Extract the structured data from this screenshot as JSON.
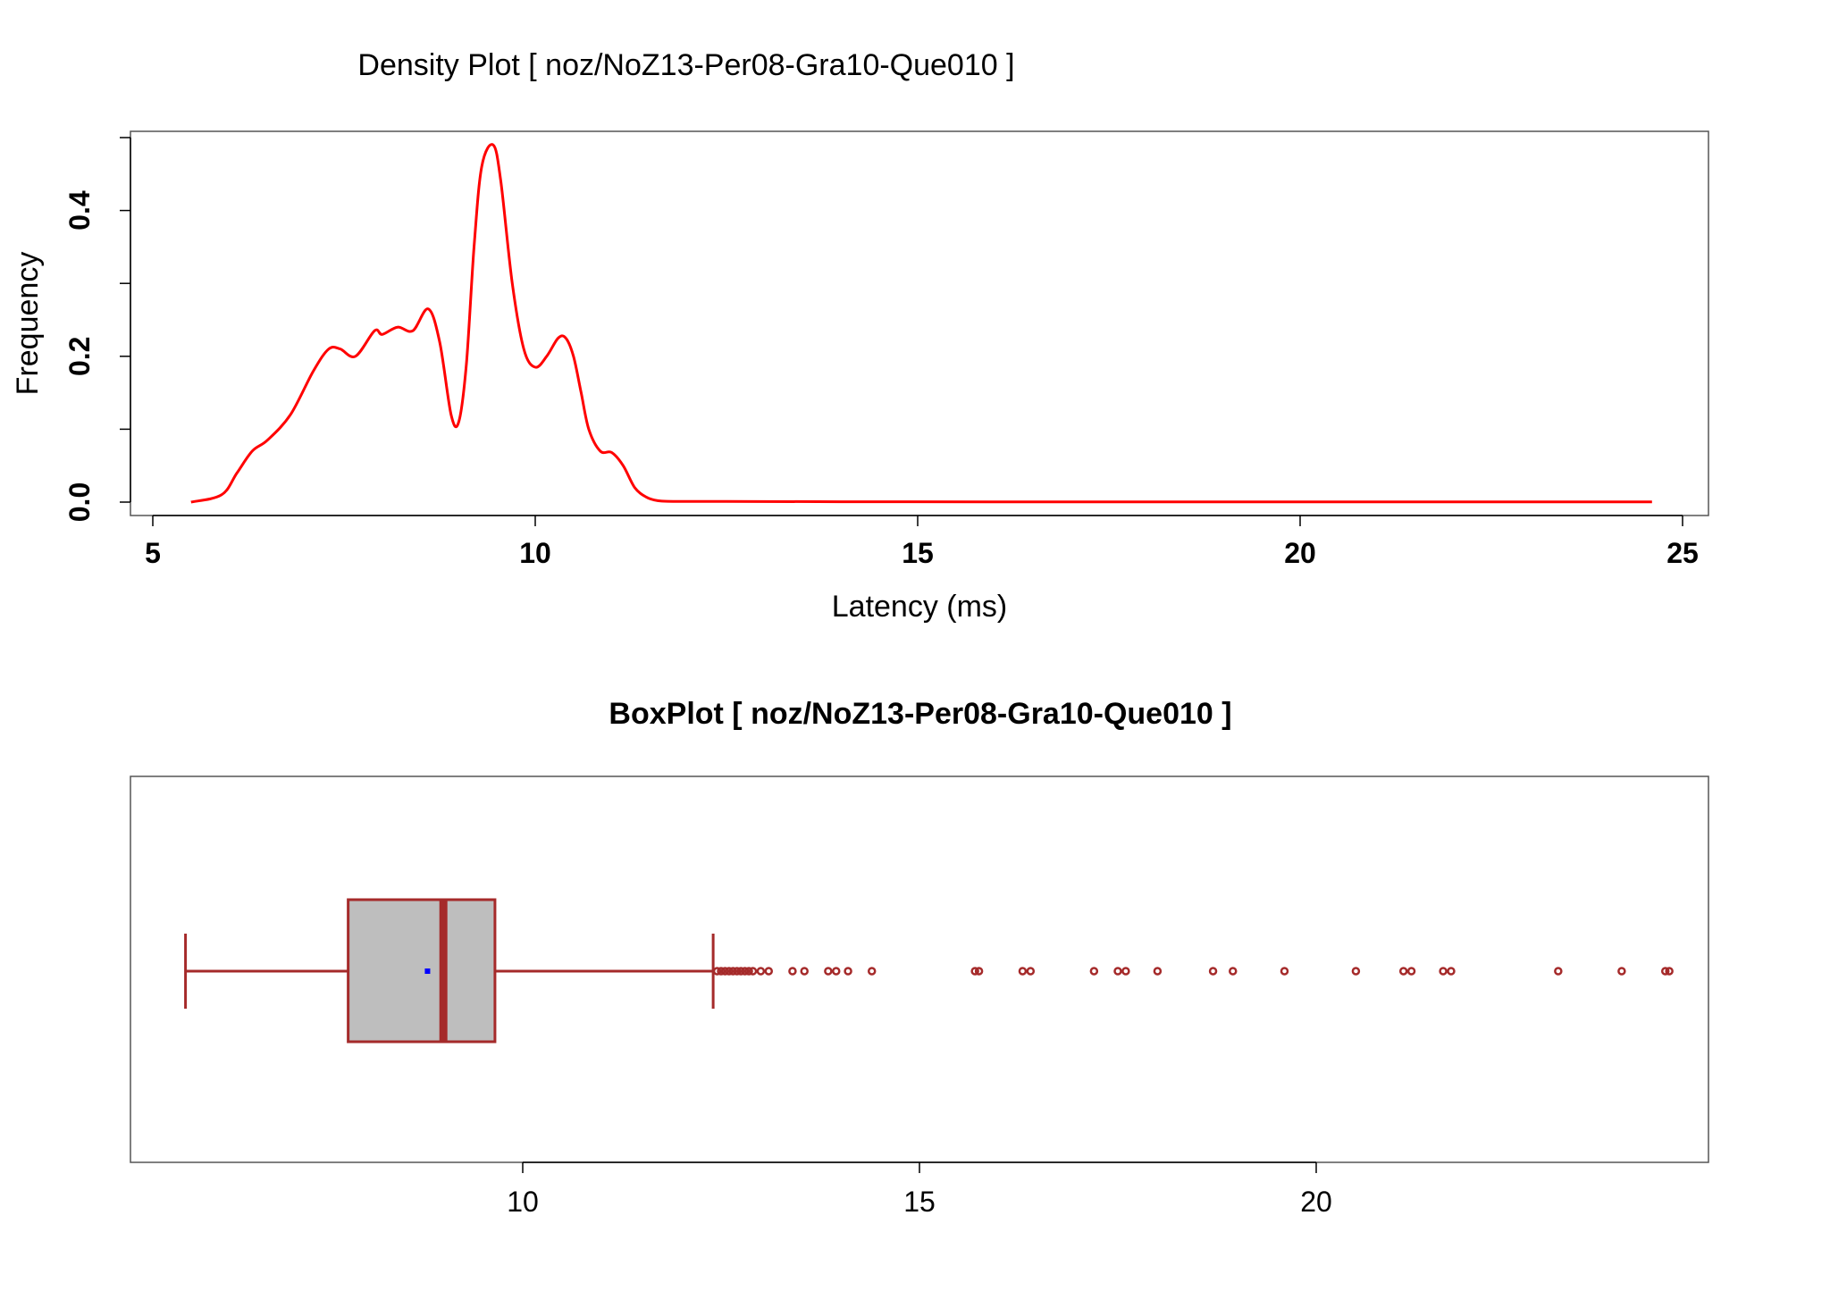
{
  "chart_data": [
    {
      "type": "line",
      "title": "Density Plot [ noz/NoZ13-Per08-Gra10-Que010 ]",
      "xlabel": "Latency (ms)",
      "ylabel": "Frequency",
      "xlim": [
        5,
        25
      ],
      "ylim": [
        0,
        0.5
      ],
      "xticks": [
        5,
        10,
        15,
        20,
        25
      ],
      "yticks": [
        0.0,
        0.2,
        0.4
      ],
      "ytick_labels": [
        "0.0",
        "0.2",
        "0.4"
      ],
      "grid": false,
      "color": "#ff0000",
      "series": [
        {
          "x": [
            5.5,
            5.9,
            6.1,
            6.3,
            6.5,
            6.8,
            7.1,
            7.3,
            7.45,
            7.65,
            7.9,
            8.0,
            8.2,
            8.4,
            8.6,
            8.75,
            8.9,
            9.0,
            9.1,
            9.2,
            9.3,
            9.45,
            9.55,
            9.7,
            9.85,
            10.0,
            10.15,
            10.3,
            10.4,
            10.5,
            10.6,
            10.7,
            10.85,
            11.0,
            11.15,
            11.3,
            11.45,
            11.6,
            11.8,
            12.5,
            14,
            17,
            20,
            22,
            24.6
          ],
          "y": [
            0.0,
            0.01,
            0.04,
            0.07,
            0.085,
            0.12,
            0.18,
            0.21,
            0.21,
            0.2,
            0.235,
            0.23,
            0.24,
            0.235,
            0.265,
            0.22,
            0.12,
            0.11,
            0.19,
            0.35,
            0.46,
            0.49,
            0.44,
            0.3,
            0.21,
            0.185,
            0.2,
            0.225,
            0.225,
            0.2,
            0.15,
            0.1,
            0.07,
            0.068,
            0.05,
            0.02,
            0.007,
            0.002,
            0.001,
            0.001,
            0.0005,
            0.0003,
            0.0003,
            0.0003,
            0.0003
          ]
        }
      ]
    },
    {
      "type": "box",
      "title": "BoxPlot [ noz/NoZ13-Per08-Gra10-Que010 ]",
      "xlim": [
        5.5,
        25.4
      ],
      "xticks": [
        10,
        15,
        20
      ],
      "whisker_low": 5.75,
      "q1": 7.8,
      "median": 9.0,
      "q3": 9.65,
      "whisker_high": 12.4,
      "mean": 8.8,
      "box_fill": "#bebebe",
      "border_color": "#a52a2a",
      "mean_color": "#0000ff",
      "outliers": [
        12.45,
        12.5,
        12.55,
        12.6,
        12.65,
        12.7,
        12.75,
        12.8,
        12.85,
        12.9,
        13.0,
        13.1,
        13.4,
        13.55,
        13.85,
        13.95,
        14.1,
        14.4,
        15.7,
        15.75,
        16.3,
        16.4,
        17.2,
        17.5,
        17.6,
        18.0,
        18.7,
        18.95,
        19.6,
        20.5,
        21.1,
        21.2,
        21.6,
        21.7,
        23.05,
        23.85,
        24.4,
        24.45
      ]
    }
  ]
}
